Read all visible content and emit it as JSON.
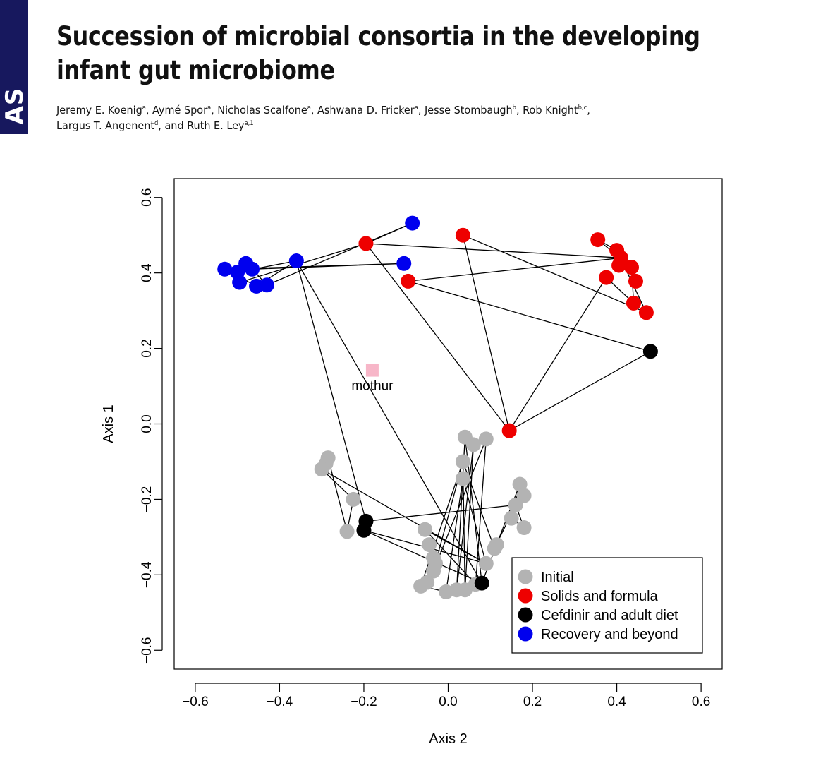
{
  "header": {
    "side_label": "AS",
    "title": "Succession of microbial consortia in the developing infant gut microbiome",
    "authors": [
      {
        "name": "Jeremy E. Koenig",
        "sup": "a"
      },
      {
        "name": "Aymé Spor",
        "sup": "a"
      },
      {
        "name": "Nicholas Scalfone",
        "sup": "a"
      },
      {
        "name": "Ashwana D. Fricker",
        "sup": "a"
      },
      {
        "name": "Jesse Stombaugh",
        "sup": "b"
      },
      {
        "name": "Rob Knight",
        "sup": "b,c"
      },
      {
        "name": "Largus T. Angenent",
        "sup": "d"
      },
      {
        "name": "Ruth E. Ley",
        "sup": "a,1"
      }
    ]
  },
  "chart_data": {
    "type": "scatter",
    "xlabel": "Axis 2",
    "ylabel": "Axis 1",
    "xlim": [
      -0.65,
      0.65
    ],
    "ylim": [
      -0.65,
      0.65
    ],
    "xticks": [
      "−0.6",
      "−0.4",
      "−0.2",
      "0.0",
      "0.2",
      "0.4",
      "0.6"
    ],
    "yticks": [
      "−0.6",
      "−0.4",
      "−0.2",
      "0.0",
      "0.2",
      "0.4",
      "0.6"
    ],
    "tick_values": [
      -0.6,
      -0.4,
      -0.2,
      0.0,
      0.2,
      0.4,
      0.6
    ],
    "grid": false,
    "legend_position": "bottom-right",
    "series": [
      {
        "name": "Initial",
        "color": "#b3b3b3",
        "points": [
          [
            -0.285,
            -0.09
          ],
          [
            -0.29,
            -0.105
          ],
          [
            -0.3,
            -0.12
          ],
          [
            -0.225,
            -0.2
          ],
          [
            -0.24,
            -0.285
          ],
          [
            0.04,
            -0.035
          ],
          [
            0.06,
            -0.055
          ],
          [
            0.09,
            -0.04
          ],
          [
            0.035,
            -0.1
          ],
          [
            0.035,
            -0.145
          ],
          [
            0.17,
            -0.16
          ],
          [
            0.18,
            -0.19
          ],
          [
            0.16,
            -0.215
          ],
          [
            0.15,
            -0.25
          ],
          [
            0.18,
            -0.275
          ],
          [
            0.115,
            -0.32
          ],
          [
            0.11,
            -0.33
          ],
          [
            0.09,
            -0.37
          ],
          [
            -0.055,
            -0.28
          ],
          [
            -0.045,
            -0.32
          ],
          [
            -0.035,
            -0.355
          ],
          [
            -0.03,
            -0.37
          ],
          [
            -0.035,
            -0.39
          ],
          [
            -0.05,
            -0.42
          ],
          [
            -0.065,
            -0.43
          ],
          [
            -0.005,
            -0.445
          ],
          [
            0.02,
            -0.44
          ],
          [
            0.04,
            -0.44
          ],
          [
            0.065,
            -0.425
          ]
        ]
      },
      {
        "name": "Solids and formula",
        "color": "#ee0000",
        "points": [
          [
            -0.195,
            0.478
          ],
          [
            0.035,
            0.5
          ],
          [
            -0.095,
            0.378
          ],
          [
            0.355,
            0.488
          ],
          [
            0.4,
            0.46
          ],
          [
            0.41,
            0.44
          ],
          [
            0.405,
            0.42
          ],
          [
            0.435,
            0.415
          ],
          [
            0.375,
            0.388
          ],
          [
            0.445,
            0.378
          ],
          [
            0.44,
            0.32
          ],
          [
            0.47,
            0.295
          ],
          [
            0.145,
            -0.018
          ]
        ]
      },
      {
        "name": "Cefdinir and adult diet",
        "color": "#000000",
        "points": [
          [
            0.48,
            0.192
          ],
          [
            -0.195,
            -0.258
          ],
          [
            -0.2,
            -0.282
          ],
          [
            0.08,
            -0.422
          ]
        ]
      },
      {
        "name": "Recovery and beyond",
        "color": "#0000ee",
        "points": [
          [
            -0.085,
            0.532
          ],
          [
            -0.105,
            0.425
          ],
          [
            -0.36,
            0.432
          ],
          [
            -0.48,
            0.425
          ],
          [
            -0.465,
            0.41
          ],
          [
            -0.53,
            0.41
          ],
          [
            -0.5,
            0.402
          ],
          [
            -0.495,
            0.375
          ],
          [
            -0.455,
            0.365
          ],
          [
            -0.43,
            0.368
          ]
        ]
      }
    ],
    "trajectory": [
      [
        -0.29,
        -0.105
      ],
      [
        -0.285,
        -0.09
      ],
      [
        -0.24,
        -0.285
      ],
      [
        -0.225,
        -0.2
      ],
      [
        -0.3,
        -0.12
      ],
      [
        0.09,
        -0.37
      ],
      [
        -0.2,
        -0.282
      ],
      [
        0.08,
        -0.422
      ],
      [
        0.04,
        -0.035
      ],
      [
        0.02,
        -0.44
      ],
      [
        0.06,
        -0.055
      ],
      [
        0.04,
        -0.44
      ],
      [
        0.035,
        -0.1
      ],
      [
        -0.035,
        -0.39
      ],
      [
        0.09,
        -0.04
      ],
      [
        0.065,
        -0.425
      ],
      [
        -0.055,
        -0.28
      ],
      [
        0.09,
        -0.37
      ],
      [
        0.035,
        -0.145
      ],
      [
        -0.005,
        -0.445
      ],
      [
        -0.065,
        -0.43
      ],
      [
        0.035,
        -0.1
      ],
      [
        0.11,
        -0.33
      ],
      [
        0.16,
        -0.215
      ],
      [
        0.18,
        -0.275
      ],
      [
        0.15,
        -0.25
      ],
      [
        0.17,
        -0.16
      ],
      [
        0.115,
        -0.32
      ],
      [
        0.08,
        -0.422
      ],
      [
        -0.36,
        0.432
      ],
      [
        -0.5,
        0.402
      ],
      [
        -0.465,
        0.41
      ],
      [
        -0.48,
        0.425
      ],
      [
        -0.495,
        0.375
      ],
      [
        -0.195,
        0.478
      ],
      [
        0.145,
        -0.018
      ],
      [
        0.035,
        0.5
      ],
      [
        0.47,
        0.295
      ],
      [
        0.4,
        0.46
      ],
      [
        0.355,
        0.488
      ],
      [
        0.435,
        0.415
      ],
      [
        0.44,
        0.32
      ],
      [
        0.375,
        0.388
      ],
      [
        0.145,
        -0.018
      ],
      [
        0.48,
        0.192
      ],
      [
        -0.095,
        0.378
      ],
      [
        0.41,
        0.44
      ],
      [
        -0.195,
        0.478
      ],
      [
        -0.085,
        0.532
      ],
      [
        -0.43,
        0.368
      ],
      [
        -0.465,
        0.41
      ],
      [
        -0.105,
        0.425
      ],
      [
        -0.53,
        0.41
      ],
      [
        -0.455,
        0.365
      ],
      [
        -0.36,
        0.432
      ],
      [
        -0.195,
        -0.258
      ],
      [
        0.16,
        -0.215
      ]
    ],
    "annotations": [
      {
        "label": "mothur",
        "x": -0.18,
        "y": 0.142,
        "marker": "square",
        "color": "#f7b6c8"
      }
    ]
  }
}
